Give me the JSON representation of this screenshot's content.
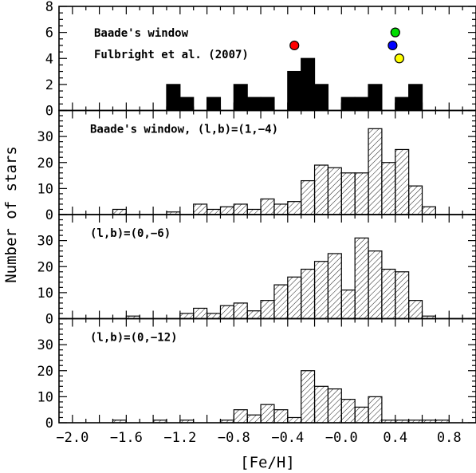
{
  "chart_data": {
    "type": "bar",
    "xlabel": "[Fe/H]",
    "ylabel": "Number of stars",
    "xlim": [
      -2.1,
      1.0
    ],
    "bin_width": 0.1,
    "x_ticks": [
      -2.0,
      -1.6,
      -1.2,
      -0.8,
      -0.4,
      -0.0,
      0.4,
      0.8
    ],
    "x_tick_labels": [
      "−2.0",
      "−1.6",
      "−1.2",
      "−0.8",
      "−0.4",
      "−0.0",
      "0.4",
      "0.8"
    ],
    "colors": {
      "solid_bar": "#000000",
      "hatch": "#000000"
    },
    "panels": [
      {
        "label": "Baade's window",
        "label2": "Fulbright et al. (2007)",
        "style": "solid",
        "ylim": [
          0,
          8
        ],
        "y_ticks": [
          0,
          2,
          4,
          6,
          8
        ],
        "bins": [
          {
            "x": -1.3,
            "value": 2
          },
          {
            "x": -1.2,
            "value": 1
          },
          {
            "x": -1.0,
            "value": 1
          },
          {
            "x": -0.8,
            "value": 2
          },
          {
            "x": -0.7,
            "value": 1
          },
          {
            "x": -0.6,
            "value": 1
          },
          {
            "x": -0.4,
            "value": 3
          },
          {
            "x": -0.3,
            "value": 4
          },
          {
            "x": -0.2,
            "value": 2
          },
          {
            "x": 0.0,
            "value": 1
          },
          {
            "x": 0.1,
            "value": 1
          },
          {
            "x": 0.2,
            "value": 2
          },
          {
            "x": 0.4,
            "value": 1
          },
          {
            "x": 0.5,
            "value": 2
          }
        ],
        "points": [
          {
            "x": -0.35,
            "y": 5,
            "color": "#ff0000"
          },
          {
            "x": 0.4,
            "y": 6,
            "color": "#00dd00"
          },
          {
            "x": 0.38,
            "y": 5,
            "color": "#0000ff"
          },
          {
            "x": 0.43,
            "y": 4,
            "color": "#ffff00"
          }
        ]
      },
      {
        "label": "Baade's window, (l,b)=(1,−4)",
        "style": "hatched",
        "ylim": [
          0,
          40
        ],
        "y_ticks": [
          0,
          10,
          20,
          30
        ],
        "bins": [
          {
            "x": -1.7,
            "value": 2
          },
          {
            "x": -1.3,
            "value": 1
          },
          {
            "x": -1.1,
            "value": 4
          },
          {
            "x": -1.0,
            "value": 2
          },
          {
            "x": -0.9,
            "value": 3
          },
          {
            "x": -0.8,
            "value": 4
          },
          {
            "x": -0.7,
            "value": 2
          },
          {
            "x": -0.6,
            "value": 6
          },
          {
            "x": -0.5,
            "value": 4
          },
          {
            "x": -0.4,
            "value": 5
          },
          {
            "x": -0.3,
            "value": 13
          },
          {
            "x": -0.2,
            "value": 19
          },
          {
            "x": -0.1,
            "value": 18
          },
          {
            "x": 0.0,
            "value": 16
          },
          {
            "x": 0.1,
            "value": 16
          },
          {
            "x": 0.2,
            "value": 33
          },
          {
            "x": 0.3,
            "value": 20
          },
          {
            "x": 0.4,
            "value": 25
          },
          {
            "x": 0.5,
            "value": 11
          },
          {
            "x": 0.6,
            "value": 3
          }
        ]
      },
      {
        "label": "(l,b)=(0,−6)",
        "style": "hatched",
        "ylim": [
          0,
          40
        ],
        "y_ticks": [
          0,
          10,
          20,
          30
        ],
        "bins": [
          {
            "x": -1.6,
            "value": 1
          },
          {
            "x": -1.2,
            "value": 2
          },
          {
            "x": -1.1,
            "value": 4
          },
          {
            "x": -1.0,
            "value": 2
          },
          {
            "x": -0.9,
            "value": 5
          },
          {
            "x": -0.8,
            "value": 6
          },
          {
            "x": -0.7,
            "value": 3
          },
          {
            "x": -0.6,
            "value": 7
          },
          {
            "x": -0.5,
            "value": 13
          },
          {
            "x": -0.4,
            "value": 16
          },
          {
            "x": -0.3,
            "value": 19
          },
          {
            "x": -0.2,
            "value": 22
          },
          {
            "x": -0.1,
            "value": 25
          },
          {
            "x": 0.0,
            "value": 11
          },
          {
            "x": 0.1,
            "value": 31
          },
          {
            "x": 0.2,
            "value": 26
          },
          {
            "x": 0.3,
            "value": 19
          },
          {
            "x": 0.4,
            "value": 18
          },
          {
            "x": 0.5,
            "value": 7
          },
          {
            "x": 0.6,
            "value": 1
          }
        ]
      },
      {
        "label": "(l,b)=(0,−12)",
        "style": "hatched",
        "ylim": [
          0,
          40
        ],
        "y_ticks": [
          0,
          10,
          20,
          30
        ],
        "bins": [
          {
            "x": -1.7,
            "value": 1
          },
          {
            "x": -1.4,
            "value": 1
          },
          {
            "x": -1.2,
            "value": 1
          },
          {
            "x": -0.9,
            "value": 1
          },
          {
            "x": -0.8,
            "value": 5
          },
          {
            "x": -0.7,
            "value": 3
          },
          {
            "x": -0.6,
            "value": 7
          },
          {
            "x": -0.5,
            "value": 5
          },
          {
            "x": -0.4,
            "value": 2
          },
          {
            "x": -0.3,
            "value": 20
          },
          {
            "x": -0.2,
            "value": 14
          },
          {
            "x": -0.1,
            "value": 13
          },
          {
            "x": 0.0,
            "value": 9
          },
          {
            "x": 0.1,
            "value": 6
          },
          {
            "x": 0.2,
            "value": 10
          },
          {
            "x": 0.3,
            "value": 1
          },
          {
            "x": 0.4,
            "value": 1
          },
          {
            "x": 0.5,
            "value": 1
          },
          {
            "x": 0.6,
            "value": 1
          },
          {
            "x": 0.7,
            "value": 1
          }
        ]
      }
    ]
  }
}
